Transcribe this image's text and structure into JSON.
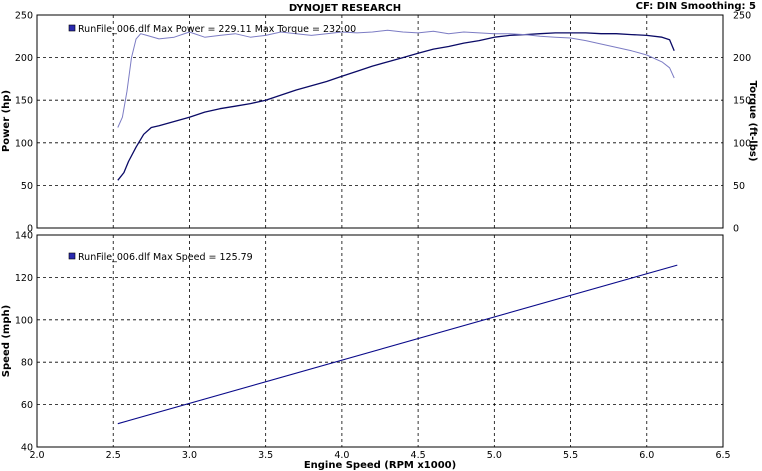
{
  "header": {
    "title": "DYNOJET RESEARCH",
    "info": "CF: DIN  Smoothing: 5"
  },
  "chart_data": [
    {
      "type": "line",
      "title": "",
      "xlabel": "",
      "ylabel": "Power (hp)",
      "y2label": "Torque (ft-lbs)",
      "xlim": [
        2.0,
        6.5
      ],
      "ylim": [
        0,
        250
      ],
      "y2lim": [
        0,
        250
      ],
      "yticks": [
        0,
        50,
        100,
        150,
        200,
        250
      ],
      "y2ticks": [
        0,
        50,
        100,
        150,
        200,
        250
      ],
      "grid": true,
      "legend_placement": "top-left",
      "legend_text": "RunFile_006.dlf Max Power = 229.11    Max Torque = 232.00",
      "colors": {
        "power": "#0a0a66",
        "torque": "#7c7cc4",
        "legend_swatch": "#2a2ab0"
      },
      "series": [
        {
          "key": "power",
          "axis": "left",
          "x": [
            2.53,
            2.57,
            2.6,
            2.65,
            2.7,
            2.75,
            2.8,
            2.9,
            3.0,
            3.1,
            3.2,
            3.3,
            3.4,
            3.5,
            3.6,
            3.7,
            3.8,
            3.9,
            4.0,
            4.1,
            4.2,
            4.3,
            4.4,
            4.5,
            4.6,
            4.7,
            4.8,
            4.9,
            5.0,
            5.1,
            5.2,
            5.3,
            5.4,
            5.5,
            5.6,
            5.7,
            5.8,
            5.9,
            6.0,
            6.1,
            6.15,
            6.18
          ],
          "values": [
            56,
            65,
            78,
            95,
            110,
            118,
            120,
            125,
            130,
            136,
            140,
            143,
            146,
            150,
            156,
            162,
            167,
            172,
            178,
            184,
            190,
            195,
            200,
            205,
            210,
            213,
            217,
            220,
            224,
            226,
            227,
            228,
            229,
            229,
            229,
            228,
            228,
            227,
            226,
            224,
            221,
            208
          ]
        },
        {
          "key": "torque",
          "axis": "right",
          "x": [
            2.53,
            2.56,
            2.59,
            2.62,
            2.65,
            2.68,
            2.72,
            2.8,
            2.9,
            3.0,
            3.1,
            3.2,
            3.3,
            3.4,
            3.5,
            3.6,
            3.7,
            3.8,
            3.9,
            4.0,
            4.1,
            4.2,
            4.3,
            4.4,
            4.5,
            4.6,
            4.7,
            4.8,
            4.9,
            5.0,
            5.1,
            5.2,
            5.3,
            5.4,
            5.5,
            5.6,
            5.7,
            5.8,
            5.9,
            6.0,
            6.1,
            6.15,
            6.18
          ],
          "values": [
            118,
            130,
            160,
            200,
            222,
            228,
            226,
            222,
            224,
            230,
            224,
            226,
            228,
            224,
            226,
            230,
            228,
            226,
            228,
            230,
            229,
            230,
            232,
            230,
            229,
            231,
            228,
            230,
            229,
            228,
            228,
            227,
            225,
            224,
            223,
            220,
            216,
            212,
            208,
            203,
            195,
            188,
            176
          ]
        }
      ]
    },
    {
      "type": "line",
      "title": "",
      "xlabel": "Engine Speed (RPM x1000)",
      "ylabel": "Speed (mph)",
      "xlim": [
        2.0,
        6.5
      ],
      "ylim": [
        40,
        140
      ],
      "xticks": [
        "2.0",
        "2.5",
        "3.0",
        "3.5",
        "4.0",
        "4.5",
        "5.0",
        "5.5",
        "6.0",
        "6.5"
      ],
      "yticks": [
        40,
        60,
        80,
        100,
        120,
        140
      ],
      "grid": true,
      "legend_placement": "top-left",
      "legend_text": "RunFile_006.dlf Max Speed = 125.79",
      "colors": {
        "speed": "#0a0a8a",
        "legend_swatch": "#2a2ab0"
      },
      "series": [
        {
          "key": "speed",
          "x": [
            2.53,
            6.2
          ],
          "values": [
            51,
            125.79
          ]
        }
      ]
    }
  ]
}
